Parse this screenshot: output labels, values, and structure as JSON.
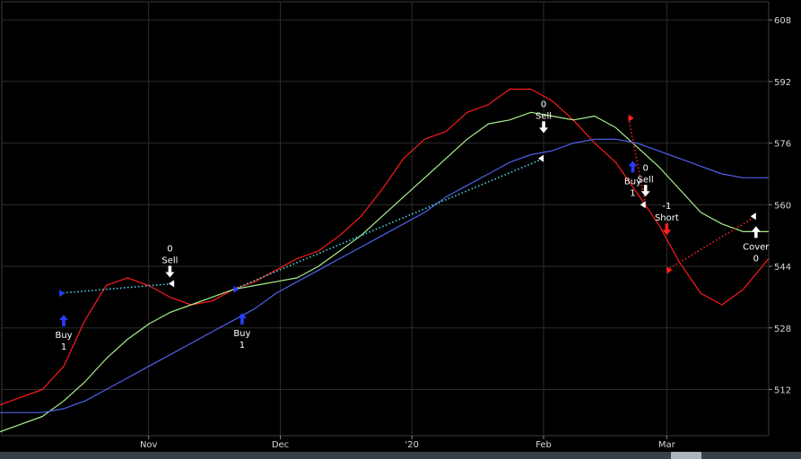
{
  "chart_data": {
    "type": "line",
    "title": "",
    "xlabel": "",
    "ylabel": "",
    "x_tick_labels": [
      "Nov",
      "Dec",
      "'20",
      "Feb",
      "Mar"
    ],
    "x_ticks_day": [
      30,
      61,
      92,
      123,
      152
    ],
    "x_range_day": [
      -5,
      176
    ],
    "ylim": [
      500,
      612
    ],
    "y_ticks": [
      512,
      528,
      544,
      560,
      576,
      592,
      608
    ],
    "grid": true,
    "colors": {
      "red": "#ff1a1a",
      "green": "#a8f08c",
      "blue": "#4f62e8",
      "cyan": "#4ad6e6",
      "trade_red": "#ff2020",
      "buy_arrow": "#2a3bff",
      "sell_arrow": "#ffffff",
      "short_arrow": "#ff2020"
    },
    "series": [
      {
        "color": "red",
        "x": [
          -5,
          0,
          5,
          10,
          15,
          20,
          25,
          30,
          35,
          40,
          45,
          50,
          55,
          60,
          65,
          70,
          75,
          80,
          85,
          90,
          95,
          100,
          105,
          110,
          115,
          120,
          125,
          130,
          135,
          140,
          145,
          150,
          155,
          160,
          165,
          170,
          176
        ],
        "values": [
          508,
          510,
          512,
          518,
          530,
          539,
          541,
          539,
          536,
          534,
          535,
          538,
          540,
          543,
          546,
          548,
          552,
          557,
          564,
          572,
          577,
          579,
          584,
          586,
          590,
          590,
          587,
          582,
          576,
          571,
          563,
          555,
          545,
          537,
          534,
          538,
          546
        ]
      },
      {
        "color": "green",
        "x": [
          -5,
          0,
          5,
          10,
          15,
          20,
          25,
          30,
          35,
          40,
          45,
          50,
          55,
          60,
          65,
          70,
          75,
          80,
          85,
          90,
          95,
          100,
          105,
          110,
          115,
          120,
          125,
          130,
          135,
          140,
          145,
          150,
          155,
          160,
          165,
          170,
          176
        ],
        "values": [
          501,
          503,
          505,
          509,
          514,
          520,
          525,
          529,
          532,
          534,
          536,
          538,
          539,
          540,
          541,
          544,
          548,
          552,
          557,
          562,
          567,
          572,
          577,
          581,
          582,
          584,
          583,
          582,
          583,
          580,
          575,
          570,
          564,
          558,
          555,
          553,
          553
        ]
      },
      {
        "color": "blue",
        "x": [
          -5,
          0,
          5,
          10,
          15,
          20,
          25,
          30,
          35,
          40,
          45,
          50,
          55,
          60,
          65,
          70,
          75,
          80,
          85,
          90,
          95,
          100,
          105,
          110,
          115,
          120,
          125,
          130,
          135,
          140,
          145,
          150,
          155,
          160,
          165,
          170,
          176
        ],
        "values": [
          506,
          506,
          506,
          507,
          509,
          512,
          515,
          518,
          521,
          524,
          527,
          530,
          533,
          537,
          540,
          543,
          546,
          549,
          552,
          555,
          558,
          562,
          565,
          568,
          571,
          573,
          574,
          576,
          577,
          577,
          576,
          574,
          572,
          570,
          568,
          567,
          567
        ]
      }
    ],
    "trades": [
      {
        "color": "cyan",
        "from": [
          9,
          537
        ],
        "to": [
          36,
          539.5
        ]
      },
      {
        "color": "cyan",
        "from": [
          50,
          538
        ],
        "to": [
          123,
          572
        ]
      },
      {
        "color": "trade_red",
        "from": [
          143,
          582.5
        ],
        "to": [
          147,
          560
        ]
      },
      {
        "color": "trade_red",
        "from": [
          152,
          543
        ],
        "to": [
          173,
          557
        ]
      }
    ],
    "signals": [
      {
        "name": "buy-signal-1",
        "arrow": "up",
        "color": "buy_arrow",
        "day": 10,
        "value": 530,
        "lines": [
          "Buy",
          "1"
        ],
        "text": "below"
      },
      {
        "name": "sell-signal-1",
        "arrow": "down",
        "color": "sell_arrow",
        "day": 35,
        "value": 542.5,
        "lines": [
          "0",
          "Sell"
        ],
        "text": "above"
      },
      {
        "name": "buy-signal-2",
        "arrow": "up",
        "color": "buy_arrow",
        "day": 52,
        "value": 530.5,
        "lines": [
          "Buy",
          "1"
        ],
        "text": "below"
      },
      {
        "name": "sell-signal-2",
        "arrow": "down",
        "color": "sell_arrow",
        "day": 123,
        "value": 580,
        "lines": [
          "0",
          "Sell"
        ],
        "text": "above"
      },
      {
        "name": "buy-signal-3",
        "arrow": "up",
        "color": "buy_arrow",
        "day": 144,
        "value": 570,
        "lines": [
          "Buy",
          "1"
        ],
        "text": "below"
      },
      {
        "name": "sell-signal-3",
        "arrow": "down",
        "color": "sell_arrow",
        "day": 147,
        "value": 563.5,
        "lines": [
          "0",
          "Sell"
        ],
        "text": "above"
      },
      {
        "name": "short-signal",
        "arrow": "down",
        "color": "short_arrow",
        "day": 152,
        "value": 553.5,
        "lines": [
          "-1",
          "Short"
        ],
        "text": "above"
      },
      {
        "name": "cover-signal",
        "arrow": "up",
        "color": "sell_arrow",
        "day": 173,
        "value": 553,
        "lines": [
          "Cover",
          "0"
        ],
        "text": "below"
      }
    ]
  }
}
